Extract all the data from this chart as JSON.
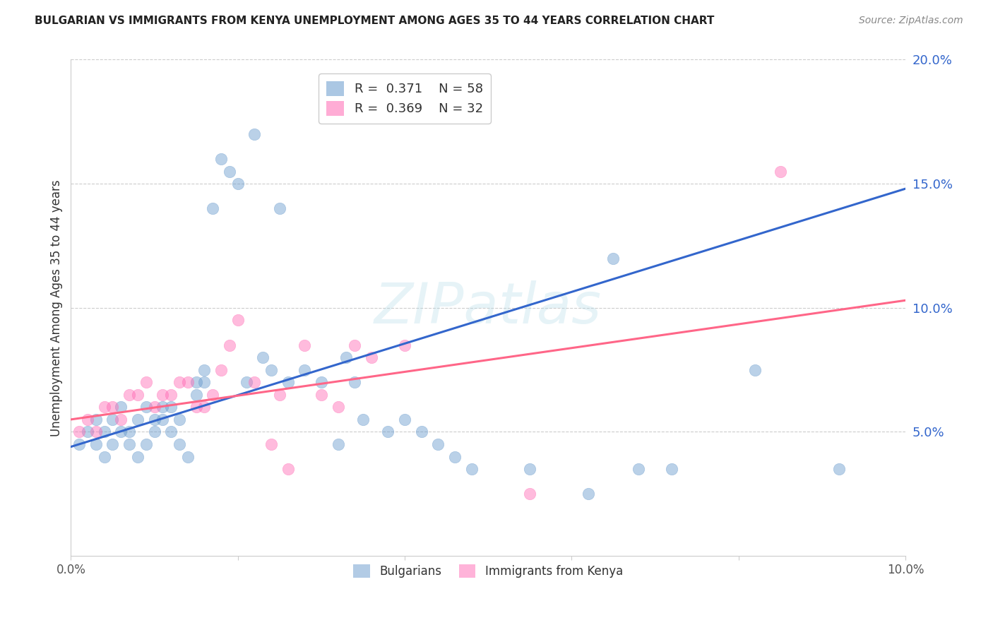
{
  "title": "BULGARIAN VS IMMIGRANTS FROM KENYA UNEMPLOYMENT AMONG AGES 35 TO 44 YEARS CORRELATION CHART",
  "source": "Source: ZipAtlas.com",
  "ylabel": "Unemployment Among Ages 35 to 44 years",
  "xlim": [
    0.0,
    0.1
  ],
  "ylim": [
    0.0,
    0.2
  ],
  "yticks": [
    0.0,
    0.05,
    0.1,
    0.15,
    0.2
  ],
  "ytick_labels": [
    "",
    "5.0%",
    "10.0%",
    "15.0%",
    "20.0%"
  ],
  "xticks": [
    0.0,
    0.02,
    0.04,
    0.06,
    0.08,
    0.1
  ],
  "xtick_labels": [
    "0.0%",
    "",
    "",
    "",
    "",
    "10.0%"
  ],
  "legend_blue_r": "0.371",
  "legend_blue_n": "58",
  "legend_pink_r": "0.369",
  "legend_pink_n": "32",
  "legend_label_blue": "Bulgarians",
  "legend_label_pink": "Immigrants from Kenya",
  "blue_color": "#6699CC",
  "pink_color": "#FF69B4",
  "blue_line_color": "#3366CC",
  "pink_line_color": "#FF6688",
  "watermark_text": "ZIPatlas",
  "blue_scatter_x": [
    0.001,
    0.002,
    0.003,
    0.003,
    0.004,
    0.004,
    0.005,
    0.005,
    0.006,
    0.006,
    0.007,
    0.007,
    0.008,
    0.008,
    0.009,
    0.009,
    0.01,
    0.01,
    0.011,
    0.011,
    0.012,
    0.012,
    0.013,
    0.013,
    0.014,
    0.015,
    0.015,
    0.016,
    0.016,
    0.017,
    0.018,
    0.019,
    0.02,
    0.021,
    0.022,
    0.023,
    0.024,
    0.025,
    0.026,
    0.028,
    0.03,
    0.032,
    0.033,
    0.034,
    0.035,
    0.038,
    0.04,
    0.042,
    0.044,
    0.046,
    0.048,
    0.055,
    0.062,
    0.065,
    0.068,
    0.072,
    0.082,
    0.092
  ],
  "blue_scatter_y": [
    0.045,
    0.05,
    0.045,
    0.055,
    0.04,
    0.05,
    0.045,
    0.055,
    0.05,
    0.06,
    0.045,
    0.05,
    0.04,
    0.055,
    0.045,
    0.06,
    0.05,
    0.055,
    0.055,
    0.06,
    0.05,
    0.06,
    0.045,
    0.055,
    0.04,
    0.065,
    0.07,
    0.07,
    0.075,
    0.14,
    0.16,
    0.155,
    0.15,
    0.07,
    0.17,
    0.08,
    0.075,
    0.14,
    0.07,
    0.075,
    0.07,
    0.045,
    0.08,
    0.07,
    0.055,
    0.05,
    0.055,
    0.05,
    0.045,
    0.04,
    0.035,
    0.035,
    0.025,
    0.12,
    0.035,
    0.035,
    0.075,
    0.035
  ],
  "pink_scatter_x": [
    0.001,
    0.002,
    0.003,
    0.004,
    0.005,
    0.006,
    0.007,
    0.008,
    0.009,
    0.01,
    0.011,
    0.012,
    0.013,
    0.014,
    0.015,
    0.016,
    0.017,
    0.018,
    0.019,
    0.02,
    0.022,
    0.024,
    0.025,
    0.026,
    0.028,
    0.03,
    0.032,
    0.034,
    0.036,
    0.04,
    0.055,
    0.085
  ],
  "pink_scatter_y": [
    0.05,
    0.055,
    0.05,
    0.06,
    0.06,
    0.055,
    0.065,
    0.065,
    0.07,
    0.06,
    0.065,
    0.065,
    0.07,
    0.07,
    0.06,
    0.06,
    0.065,
    0.075,
    0.085,
    0.095,
    0.07,
    0.045,
    0.065,
    0.035,
    0.085,
    0.065,
    0.06,
    0.085,
    0.08,
    0.085,
    0.025,
    0.155
  ],
  "blue_trend_x": [
    0.0,
    0.1
  ],
  "blue_trend_y": [
    0.044,
    0.148
  ],
  "pink_trend_x": [
    0.0,
    0.1
  ],
  "pink_trend_y": [
    0.055,
    0.103
  ],
  "grid_color": "#cccccc",
  "grid_linestyle": "--",
  "title_fontsize": 11,
  "source_fontsize": 10,
  "tick_fontsize": 13,
  "ylabel_fontsize": 12
}
